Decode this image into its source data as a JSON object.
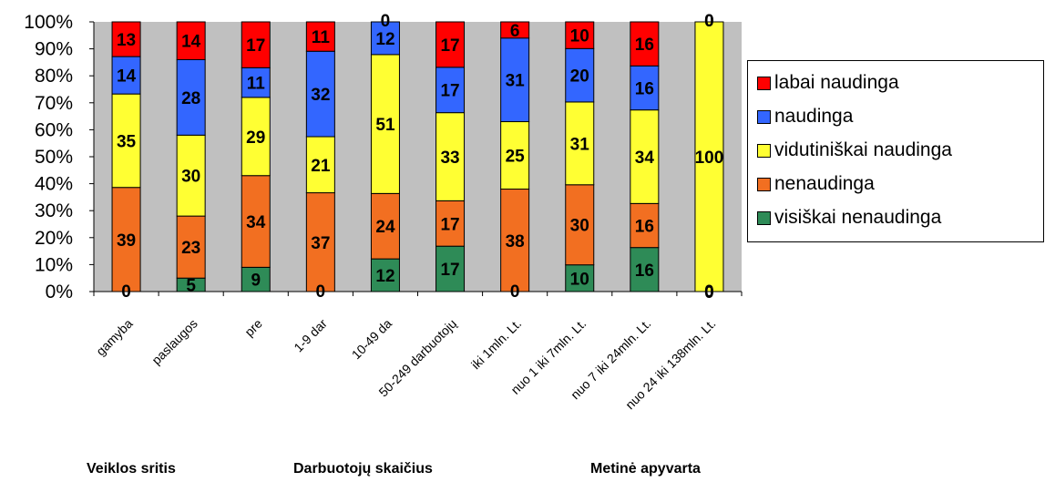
{
  "chart_data": {
    "type": "bar",
    "stacked": true,
    "percent_stacked": true,
    "categories": [
      "gamyba",
      "paslaugos",
      "pre",
      "1-9 dar",
      "10-49 da",
      "50-249 darbuotojų",
      "iki 1mln. Lt.",
      "nuo 1 iki 7mln. Lt.",
      "nuo 7 iki 24mln. Lt.",
      "nuo 24 iki 138mln. Lt."
    ],
    "series": [
      {
        "name": "visiškai nenaudinga",
        "color": "#2E8B57",
        "values": [
          0,
          5,
          9,
          0,
          12,
          17,
          0,
          10,
          16,
          0
        ]
      },
      {
        "name": "nenaudinga",
        "color": "#F26F21",
        "values": [
          39,
          23,
          34,
          37,
          24,
          17,
          38,
          30,
          16,
          0
        ]
      },
      {
        "name": "vidutiniškai naudinga",
        "color": "#FFFF33",
        "values": [
          35,
          30,
          29,
          21,
          51,
          33,
          25,
          31,
          34,
          100
        ]
      },
      {
        "name": "naudinga",
        "color": "#3366FF",
        "values": [
          14,
          28,
          11,
          32,
          12,
          17,
          31,
          20,
          16,
          0
        ]
      },
      {
        "name": "labai naudinga",
        "color": "#FF0000",
        "values": [
          13,
          14,
          17,
          11,
          0,
          17,
          6,
          10,
          16,
          0
        ]
      }
    ],
    "y_ticks": [
      "0%",
      "10%",
      "20%",
      "30%",
      "40%",
      "50%",
      "60%",
      "70%",
      "80%",
      "90%",
      "100%"
    ],
    "ylim": [
      0,
      100
    ],
    "grid": false,
    "legend_placement": "right",
    "legend_order": [
      "labai naudinga",
      "naudinga",
      "vidutiniškai naudinga",
      "nenaudinga",
      "visiškai nenaudinga"
    ],
    "plot_background": "#C0C0C0",
    "group_labels": [
      "Veiklos sritis",
      "Darbuotojų skaičius",
      "Metinė apyvarta"
    ]
  }
}
